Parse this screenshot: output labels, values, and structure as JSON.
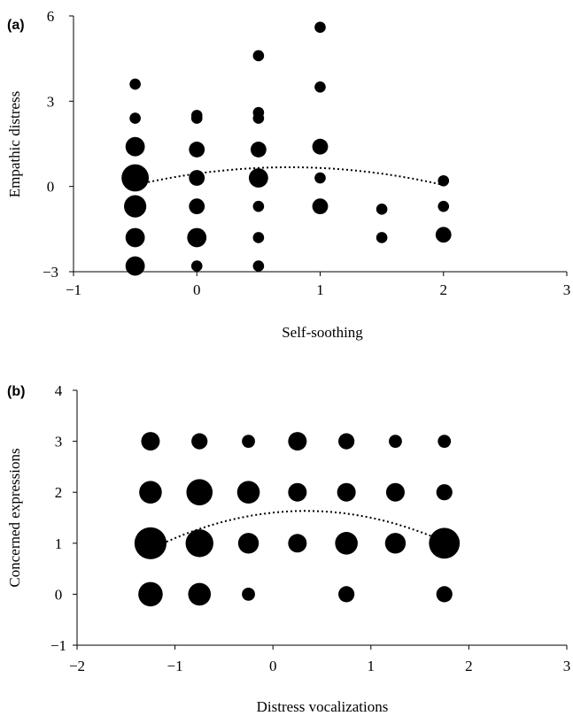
{
  "chart_data": [
    {
      "type": "scatter",
      "panel_label": "(a)",
      "xlabel": "Self-soothing",
      "ylabel": "Empathic distress",
      "xlim": [
        -1,
        3
      ],
      "ylim": [
        -3,
        6
      ],
      "xticks": [
        -1,
        0,
        1,
        2,
        3
      ],
      "xtick_labels": [
        "−1",
        "0",
        "1",
        "2",
        "3"
      ],
      "yticks": [
        -3,
        0,
        3,
        6
      ],
      "ytick_labels": [
        "−3",
        "0",
        "3",
        "6"
      ],
      "grid": false,
      "marker_color": "#000000",
      "trendline": {
        "style": "dotted",
        "fit": "quadratic",
        "x_range": [
          -0.5,
          2
        ],
        "coefficients": [
          -0.4,
          0.6,
          0.45
        ]
      },
      "points": [
        {
          "x": -0.5,
          "y": 3.6,
          "size": 1
        },
        {
          "x": -0.5,
          "y": 2.4,
          "size": 1
        },
        {
          "x": -0.5,
          "y": 1.4,
          "size": 3
        },
        {
          "x": -0.5,
          "y": 0.3,
          "size": 6
        },
        {
          "x": -0.5,
          "y": -0.7,
          "size": 4
        },
        {
          "x": -0.5,
          "y": -1.8,
          "size": 3
        },
        {
          "x": -0.5,
          "y": -2.8,
          "size": 3
        },
        {
          "x": 0,
          "y": 2.5,
          "size": 1
        },
        {
          "x": 0,
          "y": 2.4,
          "size": 1
        },
        {
          "x": 0,
          "y": 1.3,
          "size": 2
        },
        {
          "x": 0,
          "y": 0.3,
          "size": 2
        },
        {
          "x": 0,
          "y": -0.7,
          "size": 2
        },
        {
          "x": 0,
          "y": -1.8,
          "size": 3
        },
        {
          "x": 0,
          "y": -2.8,
          "size": 1
        },
        {
          "x": 0.5,
          "y": 4.6,
          "size": 1
        },
        {
          "x": 0.5,
          "y": 2.6,
          "size": 1
        },
        {
          "x": 0.5,
          "y": 2.4,
          "size": 1
        },
        {
          "x": 0.5,
          "y": 1.3,
          "size": 2
        },
        {
          "x": 0.5,
          "y": 0.3,
          "size": 3
        },
        {
          "x": 0.5,
          "y": -0.7,
          "size": 1
        },
        {
          "x": 0.5,
          "y": -1.8,
          "size": 1
        },
        {
          "x": 0.5,
          "y": -2.8,
          "size": 1
        },
        {
          "x": 1,
          "y": 5.6,
          "size": 1
        },
        {
          "x": 1,
          "y": 3.5,
          "size": 1
        },
        {
          "x": 1,
          "y": 1.4,
          "size": 2
        },
        {
          "x": 1,
          "y": 0.3,
          "size": 1
        },
        {
          "x": 1,
          "y": -0.7,
          "size": 2
        },
        {
          "x": 1.5,
          "y": -0.8,
          "size": 1
        },
        {
          "x": 1.5,
          "y": -1.8,
          "size": 1
        },
        {
          "x": 2,
          "y": 0.2,
          "size": 1
        },
        {
          "x": 2,
          "y": -0.7,
          "size": 1
        },
        {
          "x": 2,
          "y": -1.7,
          "size": 2
        }
      ]
    },
    {
      "type": "scatter",
      "panel_label": "(b)",
      "xlabel": "Distress vocalizations",
      "ylabel": "Concerned expressions",
      "xlim": [
        -2,
        3
      ],
      "ylim": [
        -1,
        4
      ],
      "xticks": [
        -2,
        -1,
        0,
        1,
        2,
        3
      ],
      "xtick_labels": [
        "−2",
        "−1",
        "0",
        "1",
        "2",
        "3"
      ],
      "yticks": [
        -1,
        0,
        1,
        2,
        3,
        4
      ],
      "ytick_labels": [
        "−1",
        "0",
        "1",
        "2",
        "3",
        "4"
      ],
      "grid": false,
      "marker_color": "#000000",
      "trendline": {
        "style": "dotted",
        "fit": "quadratic",
        "x_range": [
          -1.25,
          1.75
        ],
        "coefficients": [
          -0.3,
          0.2,
          1.6
        ]
      },
      "points": [
        {
          "x": -1.25,
          "y": 3,
          "size": 2
        },
        {
          "x": -0.75,
          "y": 3,
          "size": 1.5
        },
        {
          "x": -0.25,
          "y": 3,
          "size": 1
        },
        {
          "x": 0.25,
          "y": 3,
          "size": 2
        },
        {
          "x": 0.75,
          "y": 3,
          "size": 1.5
        },
        {
          "x": 1.25,
          "y": 3,
          "size": 1
        },
        {
          "x": 1.75,
          "y": 3,
          "size": 1
        },
        {
          "x": -1.25,
          "y": 2,
          "size": 3
        },
        {
          "x": -0.75,
          "y": 2,
          "size": 4
        },
        {
          "x": -0.25,
          "y": 2,
          "size": 3
        },
        {
          "x": 0.25,
          "y": 2,
          "size": 2
        },
        {
          "x": 0.75,
          "y": 2,
          "size": 2
        },
        {
          "x": 1.25,
          "y": 2,
          "size": 2
        },
        {
          "x": 1.75,
          "y": 2,
          "size": 1.5
        },
        {
          "x": -1.25,
          "y": 1,
          "size": 6
        },
        {
          "x": -0.75,
          "y": 1,
          "size": 4.5
        },
        {
          "x": -0.25,
          "y": 1,
          "size": 2.5
        },
        {
          "x": 0.25,
          "y": 1,
          "size": 2
        },
        {
          "x": 0.75,
          "y": 1,
          "size": 3
        },
        {
          "x": 1.25,
          "y": 1,
          "size": 2.5
        },
        {
          "x": 1.75,
          "y": 1,
          "size": 5.5
        },
        {
          "x": -1.25,
          "y": 0,
          "size": 3.5
        },
        {
          "x": -0.75,
          "y": 0,
          "size": 3
        },
        {
          "x": -0.25,
          "y": 0,
          "size": 1
        },
        {
          "x": 0.75,
          "y": 0,
          "size": 1.5
        },
        {
          "x": 1.75,
          "y": 0,
          "size": 1.5
        }
      ]
    }
  ]
}
